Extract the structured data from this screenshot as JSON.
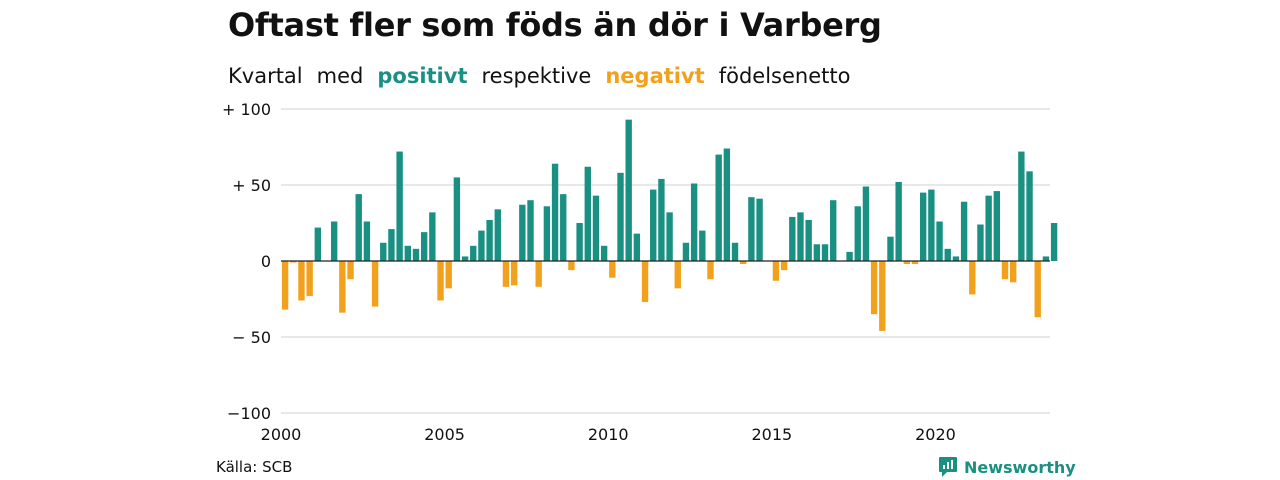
{
  "title": "Oftast fler som föds än dör i Varberg",
  "subtitle": {
    "w1": "Kvartal",
    "w2": "med",
    "w3": "positivt",
    "w4": "respektive",
    "w5": "negativt",
    "w6": "födelsenetto"
  },
  "source": "Källa: SCB",
  "brand": "Newsworthy",
  "colors": {
    "positive": "#1a9082",
    "negative": "#f2a11d",
    "grid": "#d9d9d9"
  },
  "chart_data": {
    "type": "bar",
    "title": "Oftast fler som föds än dör i Varberg",
    "xlabel": "",
    "ylabel": "",
    "ylim": [
      -100,
      100
    ],
    "grid": true,
    "x_ticks": [
      2000,
      2005,
      2010,
      2015,
      2020
    ],
    "y_ticks": [
      {
        "value": 100,
        "label": "+ 100"
      },
      {
        "value": 50,
        "label": "+  50"
      },
      {
        "value": 0,
        "label": "0"
      },
      {
        "value": -50,
        "label": "− 50"
      },
      {
        "value": -100,
        "label": "−100"
      }
    ],
    "start_quarter": "2000 Q1",
    "frequency": "quarterly",
    "values": [
      -32,
      -1,
      -26,
      -23,
      22,
      0,
      26,
      -34,
      -12,
      44,
      26,
      -30,
      12,
      21,
      72,
      10,
      8,
      19,
      32,
      -26,
      -18,
      55,
      3,
      10,
      20,
      27,
      34,
      -17,
      -16,
      37,
      40,
      -17,
      36,
      64,
      44,
      -6,
      25,
      62,
      43,
      10,
      -11,
      58,
      93,
      18,
      -27,
      47,
      54,
      32,
      -18,
      12,
      51,
      20,
      -12,
      70,
      74,
      12,
      -2,
      42,
      41,
      0,
      -13,
      -6,
      29,
      32,
      27,
      11,
      11,
      40,
      0,
      6,
      36,
      49,
      -35,
      -46,
      16,
      52,
      -2,
      -2,
      45,
      47,
      26,
      8,
      3,
      39,
      -22,
      24,
      43,
      46,
      -12,
      -14,
      72,
      59,
      -37,
      3,
      25
    ]
  }
}
